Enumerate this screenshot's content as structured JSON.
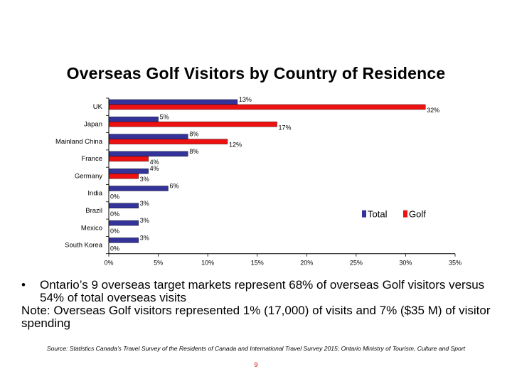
{
  "slide": {
    "title": "Overseas Golf Visitors by Country of Residence",
    "bullet": "•",
    "bullet_text": "Ontario’s 9 overseas target markets represent 68% of overseas Golf visitors versus 54% of total overseas visits",
    "note": "Note: Overseas Golf visitors represented 1% (17,000) of visits and 7% ($35 M) of visitor spending",
    "source": "Source: Statistics Canada’s Travel Survey of the Residents of Canada and International Travel Survey 2015; Ontario Ministry of Tourism, Culture and Sport",
    "page_number": "9"
  },
  "chart_data": {
    "type": "bar",
    "orientation": "horizontal",
    "title": "Overseas Golf Visitors by Country of Residence",
    "categories": [
      "UK",
      "Japan",
      "Mainland China",
      "France",
      "Germany",
      "India",
      "Brazil",
      "Mexico",
      "South Korea"
    ],
    "series": [
      {
        "name": "Total",
        "color": "#33339a",
        "values": [
          13,
          5,
          8,
          8,
          4,
          6,
          3,
          3,
          3
        ],
        "labels": [
          "13%",
          "5%",
          "8%",
          "8%",
          "4%",
          "6%",
          "3%",
          "3%",
          "3%"
        ]
      },
      {
        "name": "Golf",
        "color": "#ee1111",
        "values": [
          32,
          17,
          12,
          4,
          3,
          0,
          0,
          0,
          0
        ],
        "labels": [
          "32%",
          "17%",
          "12%",
          "4%",
          "3%",
          "0%",
          "0%",
          "0%",
          "0%"
        ]
      }
    ],
    "xlim": [
      0,
      35
    ],
    "xticks": [
      "0%",
      "5%",
      "10%",
      "15%",
      "20%",
      "25%",
      "30%",
      "35%"
    ],
    "legend_position": "right"
  }
}
